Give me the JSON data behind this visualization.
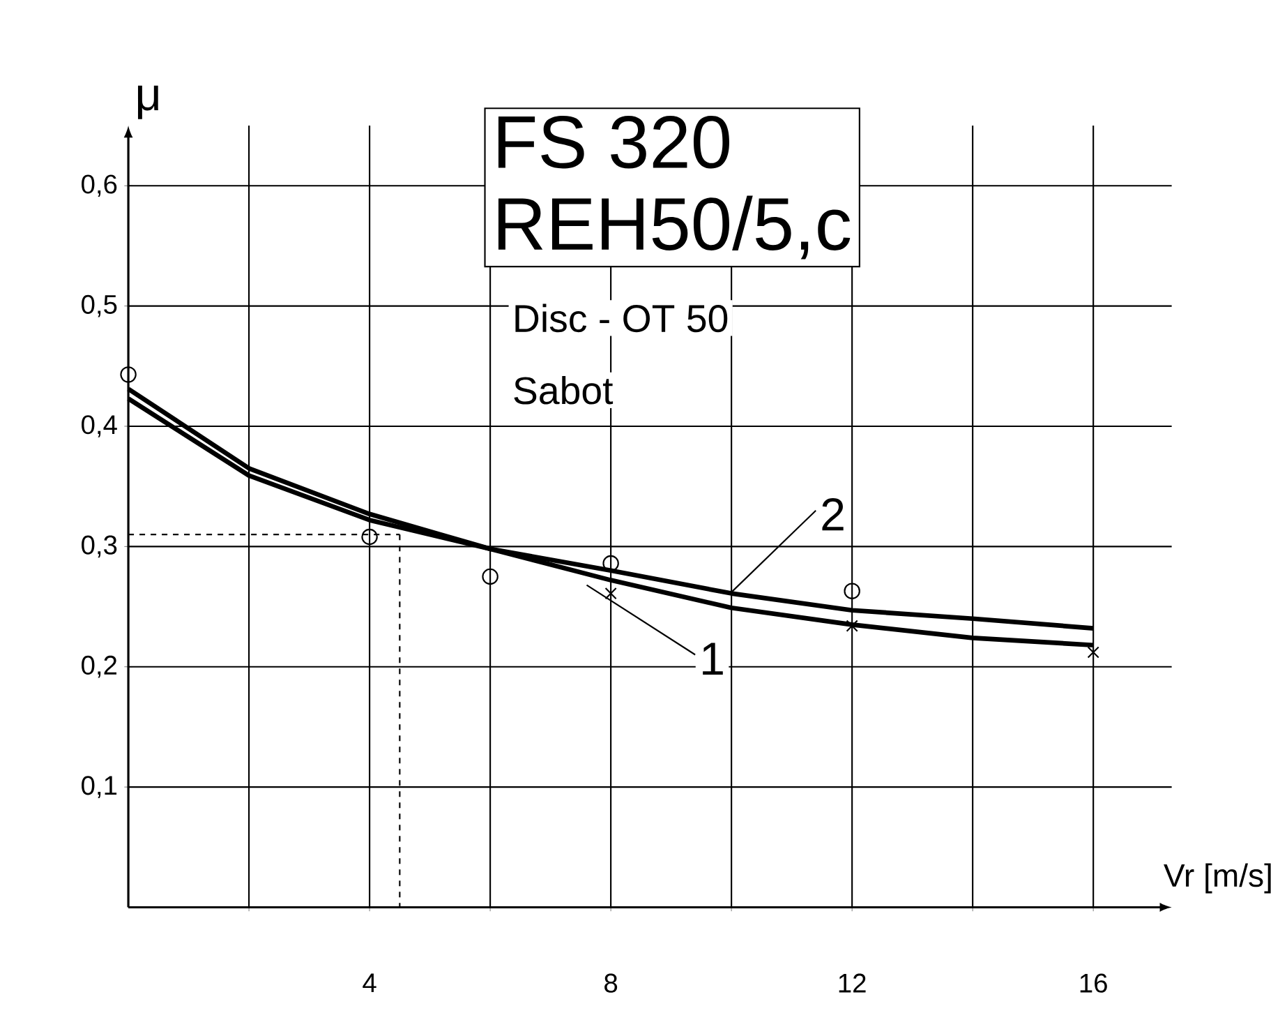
{
  "chart_data": {
    "type": "line",
    "xlabel": "Vr [m/s]",
    "ylabel": "μ",
    "annotations": [
      "FS 320",
      "REH50/5,c",
      "Disc - OT 50",
      "Sabot"
    ],
    "xlim": [
      0,
      17.3
    ],
    "ylim": [
      0,
      0.65
    ],
    "xticks": [
      {
        "value": 2,
        "label": null
      },
      4,
      {
        "value": 6,
        "label": null
      },
      8,
      {
        "value": 10,
        "label": null
      },
      12,
      {
        "value": 14,
        "label": null
      },
      16
    ],
    "yticks": [
      {
        "value": 0.1,
        "label": "0,1"
      },
      {
        "value": 0.2,
        "label": "0,2"
      },
      {
        "value": 0.3,
        "label": "0,3"
      },
      {
        "value": 0.4,
        "label": "0,4"
      },
      {
        "value": 0.5,
        "label": "0,5"
      },
      {
        "value": 0.6,
        "label": "0,6"
      }
    ],
    "grid": true,
    "ref_lines": [
      {
        "axis": "y",
        "value": 0.31,
        "line_style": "dashed",
        "color": "#000000"
      },
      {
        "axis": "x",
        "value": 4.5,
        "line_style": "dashed",
        "color": "#000000"
      }
    ],
    "series": [
      {
        "name": "1",
        "color": "#000000",
        "marker": "none",
        "x": [
          0,
          2,
          4,
          6,
          8,
          10,
          12,
          14,
          16
        ],
        "values": [
          0.431,
          0.365,
          0.327,
          0.298,
          0.272,
          0.249,
          0.235,
          0.224,
          0.218
        ]
      },
      {
        "name": "2",
        "color": "#000000",
        "marker": "none",
        "x": [
          0,
          2,
          4,
          6,
          8,
          10,
          12,
          14,
          16
        ],
        "values": [
          0.423,
          0.359,
          0.322,
          0.298,
          0.28,
          0.261,
          0.247,
          0.24,
          0.232
        ]
      },
      {
        "type": "scatter",
        "color": "#000000",
        "marker": "circle",
        "x": [
          0,
          4,
          6,
          8,
          12
        ],
        "values": [
          0.443,
          0.308,
          0.275,
          0.286,
          0.263
        ]
      },
      {
        "type": "scatter",
        "color": "#000000",
        "marker": "cross",
        "x": [
          8,
          12,
          16
        ],
        "values": [
          0.261,
          0.234,
          0.212
        ]
      }
    ]
  }
}
